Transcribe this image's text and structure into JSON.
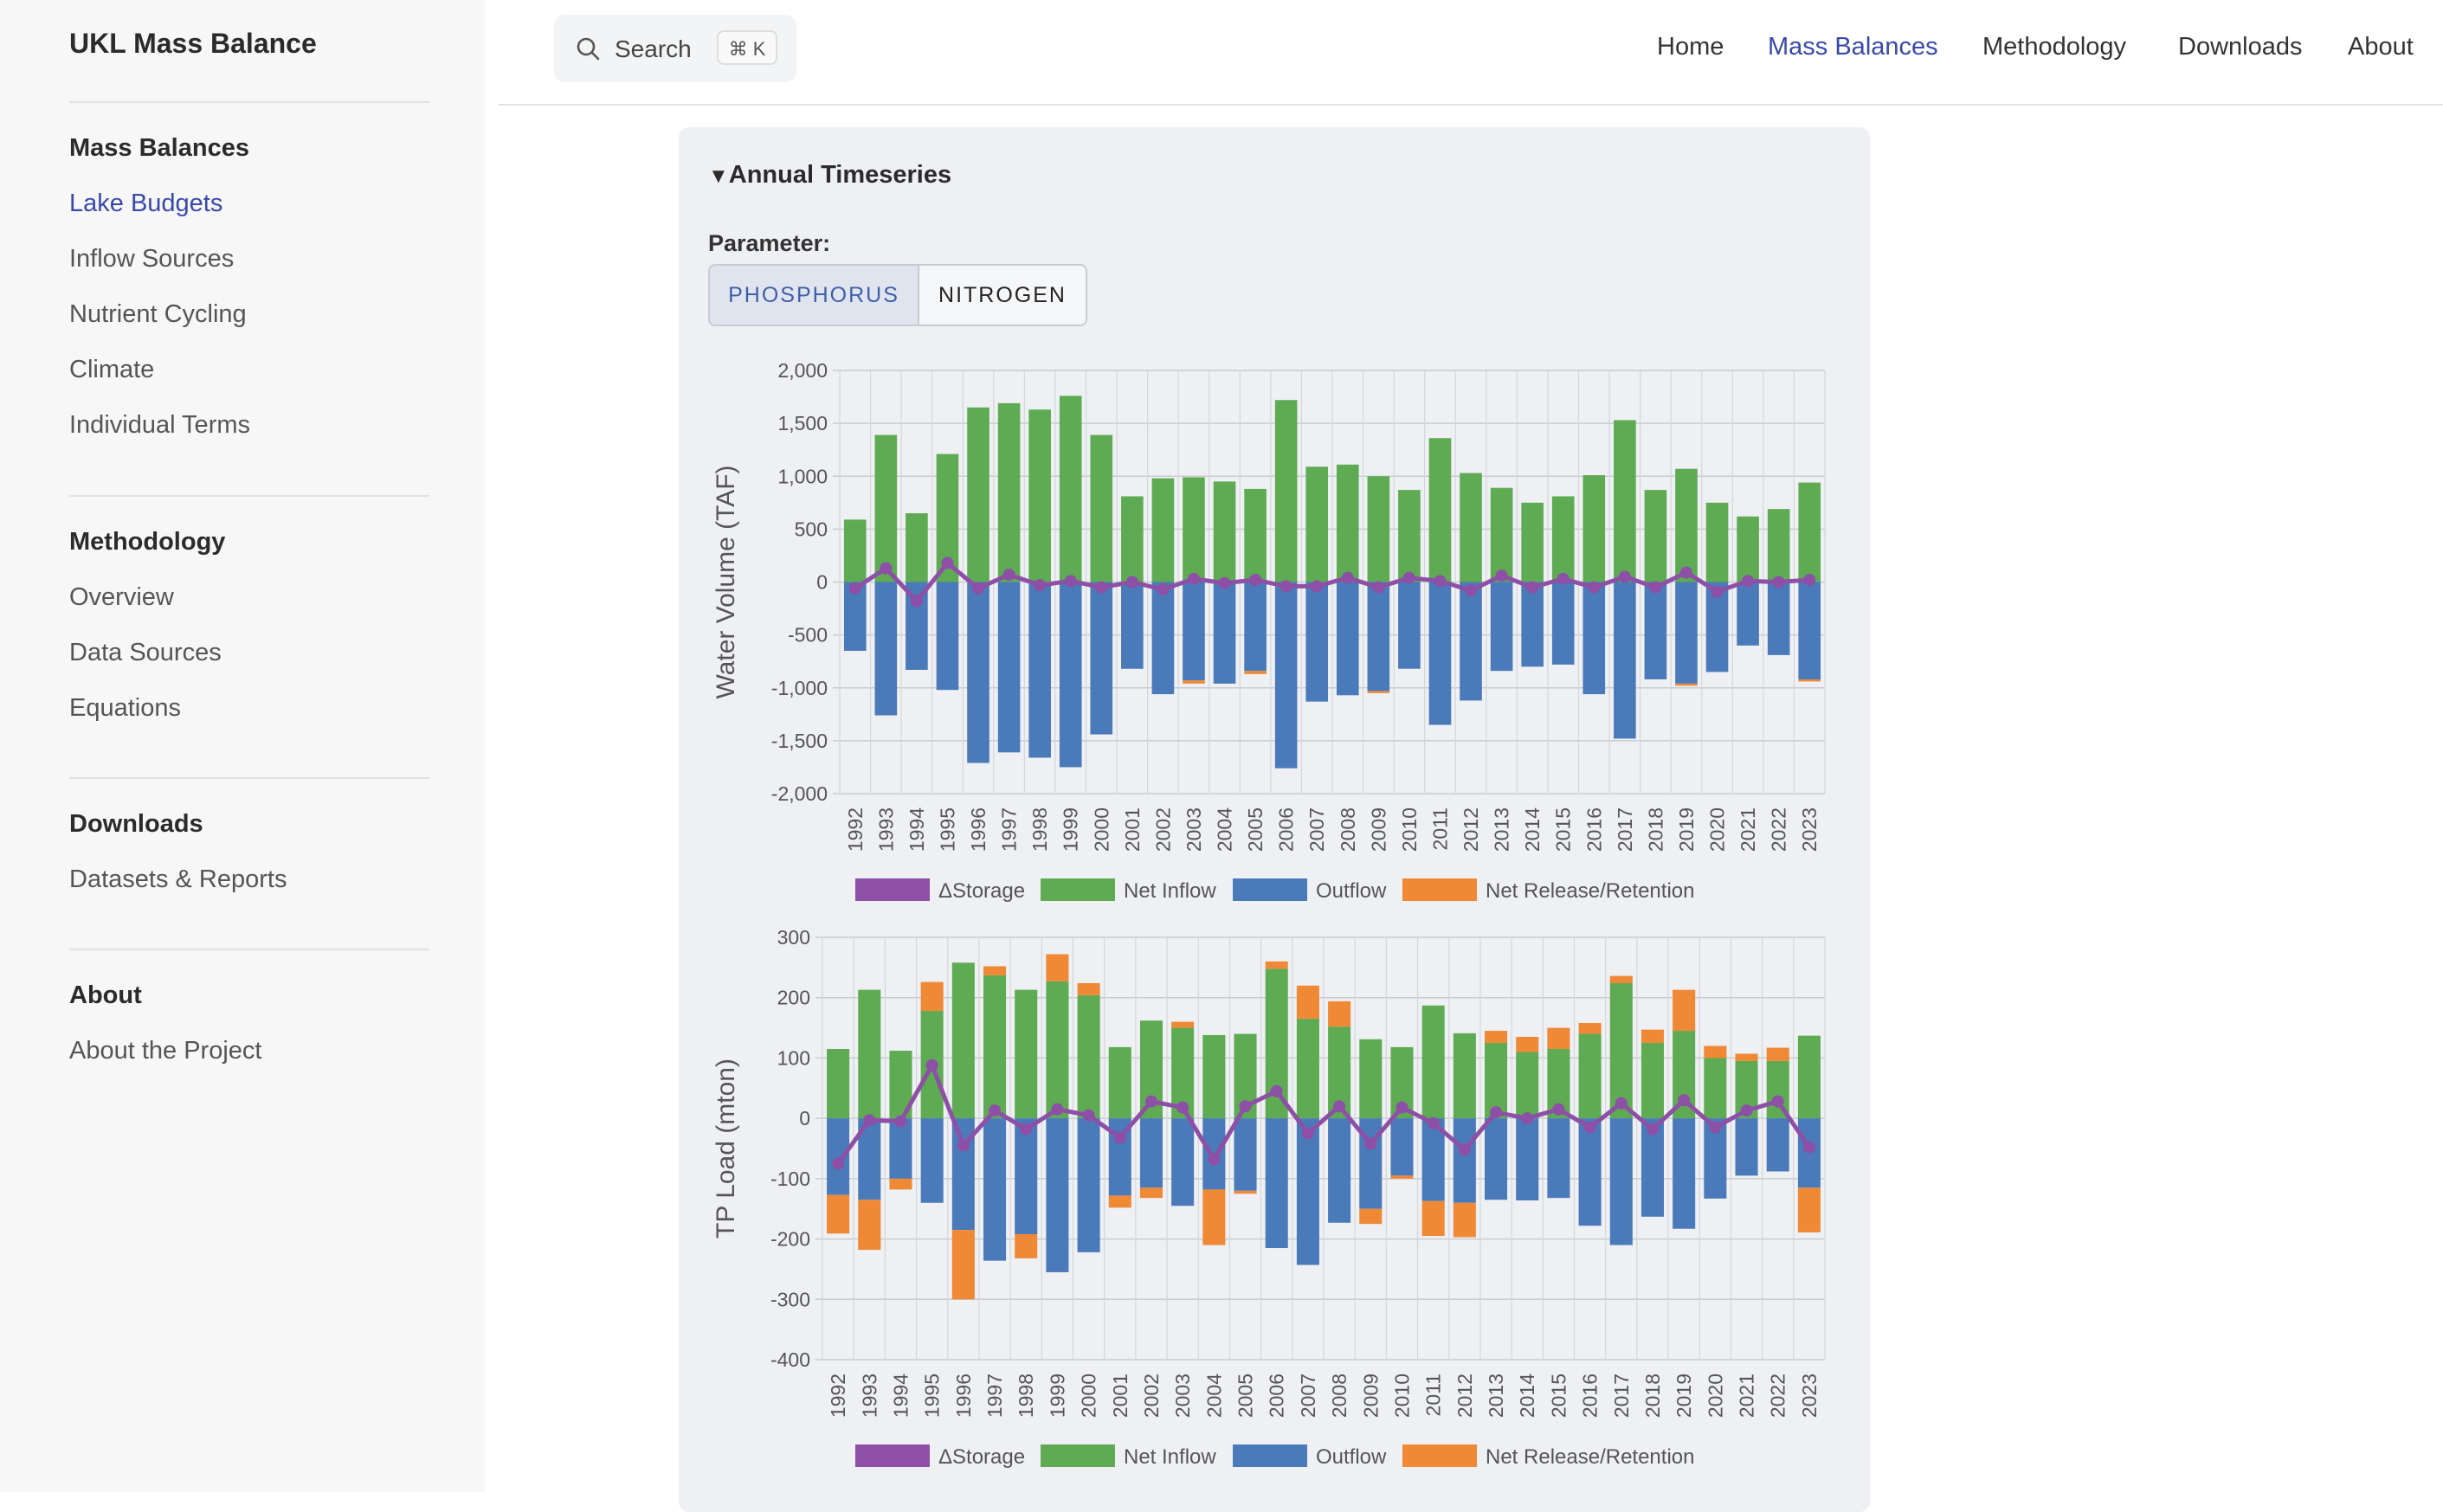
{
  "sidebar": {
    "title": "UKL Mass Balance",
    "sections": [
      {
        "heading": "Mass Balances",
        "items": [
          "Lake Budgets",
          "Inflow Sources",
          "Nutrient Cycling",
          "Climate",
          "Individual Terms"
        ]
      },
      {
        "heading": "Methodology",
        "items": [
          "Overview",
          "Data Sources",
          "Equations"
        ]
      },
      {
        "heading": "Downloads",
        "items": [
          "Datasets & Reports"
        ]
      },
      {
        "heading": "About",
        "items": [
          "About the Project"
        ]
      }
    ],
    "active_item": "Lake Budgets"
  },
  "search": {
    "label": "Search",
    "shortcut": "⌘ K",
    "icon": "search-icon"
  },
  "topnav": {
    "items": [
      "Home",
      "Mass Balances",
      "Methodology",
      "Downloads",
      "About"
    ],
    "active": "Mass Balances"
  },
  "panel": {
    "title": "Annual Timeseries",
    "param_label": "Parameter:",
    "options": [
      "PHOSPHORUS",
      "NITROGEN"
    ],
    "selected": "PHOSPHORUS"
  },
  "colors": {
    "storage": "#8e4fa6",
    "inflow": "#5eab54",
    "outflow": "#4a7ab9",
    "release": "#ef8936"
  },
  "chart_data": [
    {
      "type": "bar",
      "ylabel": "Water Volume (TAF)",
      "ylim": [
        -2000,
        2000
      ],
      "yticks": [
        -2000,
        -1500,
        -1000,
        -500,
        0,
        500,
        1000,
        1500,
        2000
      ],
      "categories": [
        "1992",
        "1993",
        "1994",
        "1995",
        "1996",
        "1997",
        "1998",
        "1999",
        "2000",
        "2001",
        "2002",
        "2003",
        "2004",
        "2005",
        "2006",
        "2007",
        "2008",
        "2009",
        "2010",
        "2011",
        "2012",
        "2013",
        "2014",
        "2015",
        "2016",
        "2017",
        "2018",
        "2019",
        "2020",
        "2021",
        "2022",
        "2023"
      ],
      "legend": [
        "ΔStorage",
        "Net Inflow",
        "Outflow",
        "Net Release/Retention"
      ],
      "legend_position": "bottom",
      "series": [
        {
          "name": "Net Inflow",
          "values": [
            590,
            1390,
            650,
            1210,
            1650,
            1690,
            1630,
            1760,
            1390,
            810,
            980,
            990,
            950,
            880,
            1720,
            1090,
            1110,
            1000,
            870,
            1360,
            1030,
            890,
            750,
            810,
            1010,
            1530,
            870,
            1070,
            750,
            620,
            690,
            940
          ]
        },
        {
          "name": "Outflow",
          "values": [
            -650,
            -1260,
            -830,
            -1020,
            -1710,
            -1610,
            -1660,
            -1750,
            -1440,
            -820,
            -1060,
            -930,
            -960,
            -840,
            -1760,
            -1130,
            -1070,
            -1030,
            -820,
            -1350,
            -1120,
            -840,
            -800,
            -780,
            -1060,
            -1480,
            -920,
            -960,
            -850,
            -600,
            -690,
            -920
          ]
        },
        {
          "name": "Net Release/Retention",
          "values": [
            0,
            0,
            0,
            0,
            0,
            0,
            0,
            0,
            0,
            0,
            0,
            -30,
            0,
            -30,
            0,
            0,
            0,
            -20,
            0,
            0,
            0,
            0,
            0,
            0,
            0,
            0,
            0,
            -20,
            0,
            0,
            0,
            -20
          ]
        },
        {
          "name": "ΔStorage",
          "values": [
            -60,
            130,
            -180,
            180,
            -60,
            70,
            -30,
            10,
            -50,
            0,
            -70,
            30,
            -10,
            20,
            -40,
            -40,
            40,
            -50,
            40,
            10,
            -80,
            60,
            -50,
            30,
            -50,
            50,
            -50,
            90,
            -90,
            10,
            0,
            20
          ]
        }
      ]
    },
    {
      "type": "bar",
      "ylabel": "TP Load (mton)",
      "ylim": [
        -400,
        300
      ],
      "yticks": [
        -400,
        -300,
        -200,
        -100,
        0,
        100,
        200,
        300
      ],
      "categories": [
        "1992",
        "1993",
        "1994",
        "1995",
        "1996",
        "1997",
        "1998",
        "1999",
        "2000",
        "2001",
        "2002",
        "2003",
        "2004",
        "2005",
        "2006",
        "2007",
        "2008",
        "2009",
        "2010",
        "2011",
        "2012",
        "2013",
        "2014",
        "2015",
        "2016",
        "2017",
        "2018",
        "2019",
        "2020",
        "2021",
        "2022",
        "2023"
      ],
      "legend": [
        "ΔStorage",
        "Net Inflow",
        "Outflow",
        "Net Release/Retention"
      ],
      "legend_position": "bottom",
      "series": [
        {
          "name": "Net Inflow",
          "values": [
            115,
            213,
            112,
            178,
            258,
            237,
            213,
            227,
            204,
            118,
            162,
            150,
            138,
            140,
            248,
            165,
            152,
            131,
            118,
            187,
            141,
            125,
            110,
            115,
            140,
            224,
            125,
            145,
            100,
            95,
            95,
            137
          ]
        },
        {
          "name": "Outflow",
          "values": [
            -127,
            -135,
            -100,
            -140,
            -185,
            -236,
            -192,
            -255,
            -222,
            -128,
            -115,
            -145,
            -118,
            -120,
            -215,
            -243,
            -173,
            -150,
            -95,
            -137,
            -140,
            -135,
            -136,
            -132,
            -178,
            -210,
            -163,
            -183,
            -133,
            -95,
            -88,
            -115
          ]
        },
        {
          "name": "Net Release/Retention",
          "values": [
            -64,
            -83,
            -18,
            48,
            -115,
            15,
            -40,
            45,
            20,
            -20,
            -17,
            10,
            -92,
            -5,
            12,
            55,
            42,
            -25,
            -5,
            -58,
            -57,
            20,
            25,
            35,
            18,
            12,
            22,
            68,
            20,
            12,
            22,
            -74
          ]
        },
        {
          "name": "ΔStorage",
          "values": [
            -75,
            -3,
            -5,
            88,
            -45,
            13,
            -18,
            15,
            5,
            -32,
            28,
            18,
            -68,
            20,
            45,
            -25,
            20,
            -42,
            18,
            -8,
            -52,
            10,
            0,
            15,
            -15,
            25,
            -18,
            30,
            -15,
            13,
            28,
            -48
          ]
        }
      ]
    }
  ]
}
